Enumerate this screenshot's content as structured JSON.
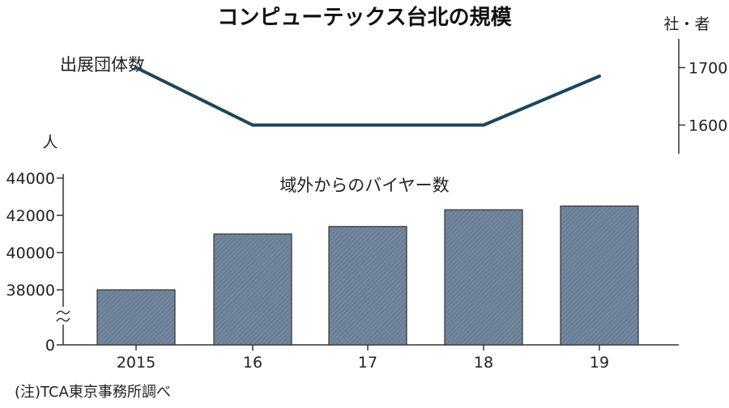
{
  "title": "コンピューテックス台北の規模",
  "source_note": "(注)TCA東京事務所調べ",
  "chart_data": [
    {
      "type": "line",
      "series_label": "出展団体数",
      "unit_label": "社・者",
      "x": [
        "2015",
        "16",
        "17",
        "18",
        "19"
      ],
      "values": [
        1700,
        1600,
        1600,
        1600,
        1685
      ],
      "ylim": [
        1550,
        1750
      ],
      "yticks": [
        "1700",
        "1600"
      ],
      "line_color": "#1b4660",
      "axis_position": "right",
      "grid": false
    },
    {
      "type": "bar",
      "series_label": "域外からのバイヤー数",
      "unit_label": "人",
      "categories": [
        "2015",
        "16",
        "17",
        "18",
        "19"
      ],
      "values": [
        38000,
        41000,
        41400,
        42300,
        42500
      ],
      "ylim": [
        36000,
        44000
      ],
      "yticks": [
        "44000",
        "42000",
        "40000",
        "38000",
        "0"
      ],
      "axis_break": true,
      "bar_color": "#6b7f96",
      "grid": false
    }
  ]
}
